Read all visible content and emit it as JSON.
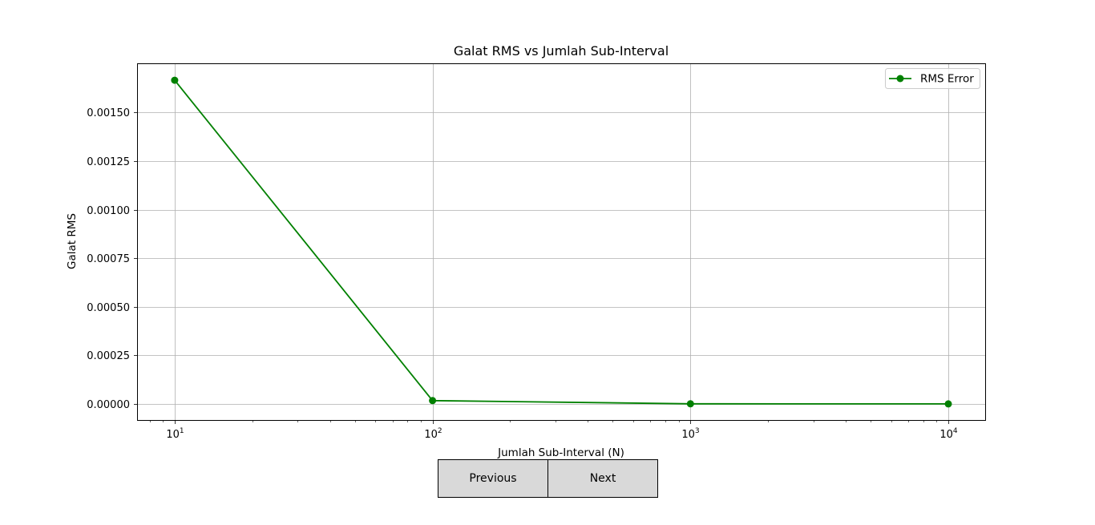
{
  "chart_data": {
    "type": "line",
    "title": "Galat RMS vs Jumlah Sub-Interval",
    "xlabel": "Jumlah Sub-Interval (N)",
    "ylabel": "Galat RMS",
    "x_scale": "log",
    "x": [
      10,
      100,
      1000,
      10000
    ],
    "x_tick_labels": [
      {
        "base": "10",
        "exp": "1",
        "value": 10
      },
      {
        "base": "10",
        "exp": "2",
        "value": 100
      },
      {
        "base": "10",
        "exp": "3",
        "value": 1000
      },
      {
        "base": "10",
        "exp": "4",
        "value": 10000
      }
    ],
    "y_ticks": [
      0,
      0.00025,
      0.0005,
      0.00075,
      0.001,
      0.00125,
      0.0015
    ],
    "y_tick_labels": [
      "0.00000",
      "0.00025",
      "0.00050",
      "0.00075",
      "0.00100",
      "0.00125",
      "0.00150"
    ],
    "xlim": [
      7.2,
      13900
    ],
    "ylim": [
      -8.3e-05,
      0.001749
    ],
    "grid": true,
    "legend_position": "upper right",
    "series": [
      {
        "name": "RMS Error",
        "color": "#008000",
        "marker": "circle",
        "values": [
          0.001666,
          1.67e-05,
          2e-07,
          0.0
        ]
      }
    ]
  },
  "buttons": {
    "previous_label": "Previous",
    "next_label": "Next"
  }
}
